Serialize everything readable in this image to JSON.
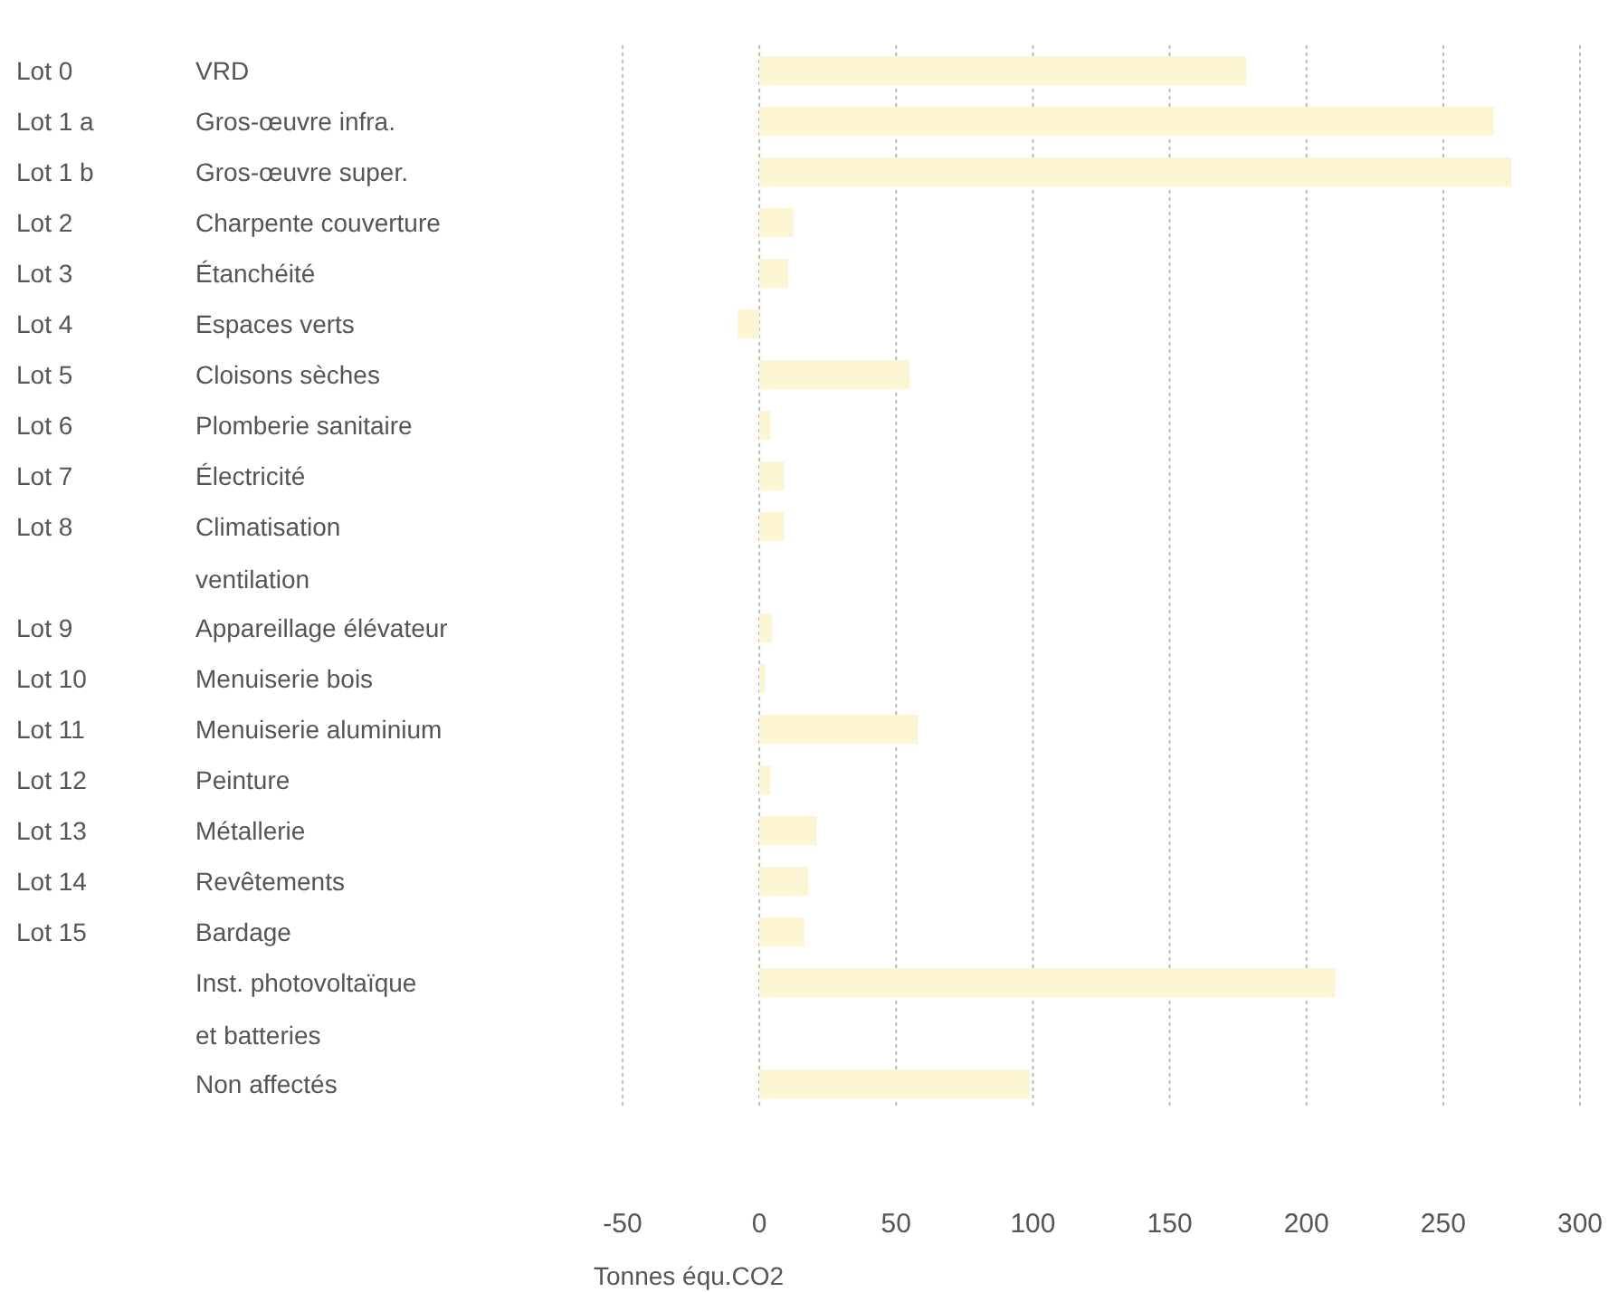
{
  "chart_data": {
    "type": "bar",
    "orientation": "horizontal",
    "categories": [
      "VRD",
      "Gros-œuvre infra.",
      "Gros-œuvre super.",
      "Charpente couverture",
      "Étanchéité",
      "Espaces verts",
      "Cloisons sèches",
      "Plomberie sanitaire",
      "Électricité",
      "Climatisation ventilation",
      "Appareillage élévateur",
      "Menuiserie bois",
      "Menuiserie aluminium",
      "Peinture",
      "Métallerie",
      "Revêtements",
      "Bardage",
      "Inst. photovoltaïque et batteries",
      "Non affectés"
    ],
    "y2_categories": [
      "Lot 0",
      "Lot 1 a",
      "Lot 1 b",
      "Lot 2",
      "Lot 3",
      "Lot 4",
      "Lot 5",
      "Lot 6",
      "Lot 7",
      "Lot 8",
      "Lot 9",
      "Lot 10",
      "Lot 11",
      "Lot 12",
      "Lot 13",
      "Lot 14",
      "Lot 15",
      null,
      null
    ],
    "values": [
      178,
      268.5,
      275,
      12.5,
      10.5,
      -8,
      55,
      4,
      9,
      9,
      4.5,
      2,
      58,
      4,
      21,
      18,
      16.5,
      210.5,
      99
    ],
    "color": "#fbf5d4",
    "xlim": [
      -50,
      300
    ],
    "xticks": [
      -50,
      0,
      50,
      100,
      150,
      200,
      250,
      300
    ],
    "xlabel": "Tonnes équ.CO2",
    "grid": "x",
    "legend": false
  }
}
